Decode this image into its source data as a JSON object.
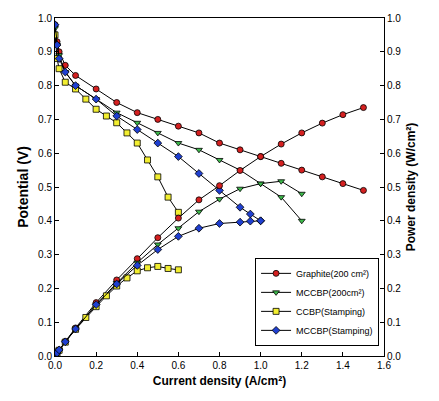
{
  "chart_data": {
    "type": "line",
    "x_label": "Current density (A/cm²)",
    "y_label": "Potential (V)",
    "y2_label": "Power density (W/cm²)",
    "xlim": [
      0,
      1.6
    ],
    "xticks": [
      {
        "value": 0,
        "label": "0.0"
      },
      0.2,
      0.4,
      0.6,
      0.8,
      {
        "value": 1,
        "label": "1.0"
      },
      1.2,
      1.4,
      1.6
    ],
    "ylim": [
      0,
      1
    ],
    "yticks": [
      {
        "value": 0,
        "label": "0.0"
      },
      0.1,
      0.2,
      0.3,
      0.4,
      0.5,
      0.6,
      0.7,
      0.8,
      0.9,
      {
        "value": 1,
        "label": "1.0"
      }
    ],
    "y2lim": [
      0,
      1
    ],
    "y2ticks": [
      {
        "value": 0,
        "label": "0.0"
      },
      0.1,
      0.2,
      0.3,
      0.4,
      0.5,
      0.6,
      0.7,
      0.8,
      0.9,
      {
        "value": 1,
        "label": "1.0"
      }
    ],
    "grid": false,
    "legend": "lower right",
    "series": [
      {
        "name": "Graphite(200 cm²)",
        "color": "#d42020",
        "marker": "circle",
        "line_style": "solid",
        "axis": "y",
        "x": [
          0,
          0.01,
          0.02,
          0.05,
          0.1,
          0.2,
          0.3,
          0.4,
          0.5,
          0.6,
          0.7,
          0.8,
          0.9,
          1.0,
          1.1,
          1.2,
          1.3,
          1.4,
          1.5
        ],
        "values": [
          0.98,
          0.93,
          0.9,
          0.86,
          0.83,
          0.79,
          0.75,
          0.72,
          0.7,
          0.68,
          0.66,
          0.63,
          0.61,
          0.59,
          0.57,
          0.55,
          0.53,
          0.51,
          0.49
        ]
      },
      {
        "name": "MCCBP(200cm²)",
        "color": "#3cb84a",
        "marker": "triangle-down",
        "line_style": "solid",
        "axis": "y",
        "x": [
          0,
          0.01,
          0.02,
          0.05,
          0.1,
          0.2,
          0.3,
          0.4,
          0.5,
          0.6,
          0.7,
          0.8,
          0.9,
          1.0,
          1.1,
          1.2
        ],
        "values": [
          0.97,
          0.92,
          0.89,
          0.84,
          0.8,
          0.76,
          0.72,
          0.69,
          0.66,
          0.63,
          0.61,
          0.58,
          0.55,
          0.51,
          0.47,
          0.4
        ]
      },
      {
        "name": "CCBP(Stamping)",
        "color": "#f2ee30",
        "marker": "square",
        "line_style": "solid",
        "axis": "y",
        "x": [
          0,
          0.01,
          0.02,
          0.05,
          0.1,
          0.15,
          0.2,
          0.25,
          0.3,
          0.35,
          0.4,
          0.45,
          0.5,
          0.55,
          0.6
        ],
        "values": [
          0.95,
          0.88,
          0.85,
          0.81,
          0.79,
          0.76,
          0.73,
          0.71,
          0.69,
          0.66,
          0.63,
          0.58,
          0.53,
          0.47,
          0.425
        ]
      },
      {
        "name": "MCCBP(Stamping)",
        "color": "#1f3fd0",
        "marker": "diamond",
        "line_style": "solid",
        "axis": "y",
        "x": [
          0,
          0.01,
          0.02,
          0.05,
          0.1,
          0.2,
          0.3,
          0.4,
          0.5,
          0.6,
          0.7,
          0.8,
          0.9,
          0.95,
          1.0
        ],
        "values": [
          0.98,
          0.92,
          0.88,
          0.84,
          0.8,
          0.76,
          0.71,
          0.67,
          0.63,
          0.59,
          0.54,
          0.49,
          0.44,
          0.42,
          0.4
        ]
      },
      {
        "name": "Graphite(200 cm²)",
        "color": "#d42020",
        "marker": "circle",
        "line_style": "solid",
        "axis": "y2",
        "x": [
          0,
          0.01,
          0.02,
          0.05,
          0.1,
          0.2,
          0.3,
          0.4,
          0.5,
          0.6,
          0.7,
          0.8,
          0.9,
          1.0,
          1.1,
          1.2,
          1.3,
          1.4,
          1.5
        ],
        "values": [
          0,
          0.009,
          0.018,
          0.043,
          0.083,
          0.158,
          0.225,
          0.288,
          0.35,
          0.408,
          0.462,
          0.504,
          0.549,
          0.59,
          0.627,
          0.66,
          0.689,
          0.714,
          0.735
        ]
      },
      {
        "name": "MCCBP(200cm²)",
        "color": "#3cb84a",
        "marker": "triangle-down",
        "line_style": "solid",
        "axis": "y2",
        "x": [
          0,
          0.01,
          0.02,
          0.05,
          0.1,
          0.2,
          0.3,
          0.4,
          0.5,
          0.6,
          0.7,
          0.8,
          0.9,
          1.0,
          1.1,
          1.2
        ],
        "values": [
          0,
          0.009,
          0.018,
          0.042,
          0.08,
          0.152,
          0.216,
          0.276,
          0.33,
          0.378,
          0.427,
          0.464,
          0.495,
          0.51,
          0.517,
          0.48
        ]
      },
      {
        "name": "CCBP(Stamping)",
        "color": "#f2ee30",
        "marker": "square",
        "line_style": "solid",
        "axis": "y2",
        "x": [
          0,
          0.01,
          0.02,
          0.05,
          0.1,
          0.15,
          0.2,
          0.25,
          0.3,
          0.35,
          0.4,
          0.45,
          0.5,
          0.55,
          0.6
        ],
        "values": [
          0,
          0.009,
          0.017,
          0.041,
          0.079,
          0.114,
          0.146,
          0.178,
          0.207,
          0.231,
          0.252,
          0.261,
          0.265,
          0.259,
          0.255
        ]
      },
      {
        "name": "MCCBP(Stamping)",
        "color": "#1f3fd0",
        "marker": "diamond",
        "line_style": "solid",
        "axis": "y2",
        "x": [
          0,
          0.01,
          0.02,
          0.05,
          0.1,
          0.2,
          0.3,
          0.4,
          0.5,
          0.6,
          0.7,
          0.8,
          0.9,
          0.95,
          1.0
        ],
        "values": [
          0,
          0.009,
          0.018,
          0.042,
          0.08,
          0.152,
          0.213,
          0.268,
          0.315,
          0.354,
          0.378,
          0.392,
          0.396,
          0.399,
          0.4
        ]
      }
    ]
  }
}
